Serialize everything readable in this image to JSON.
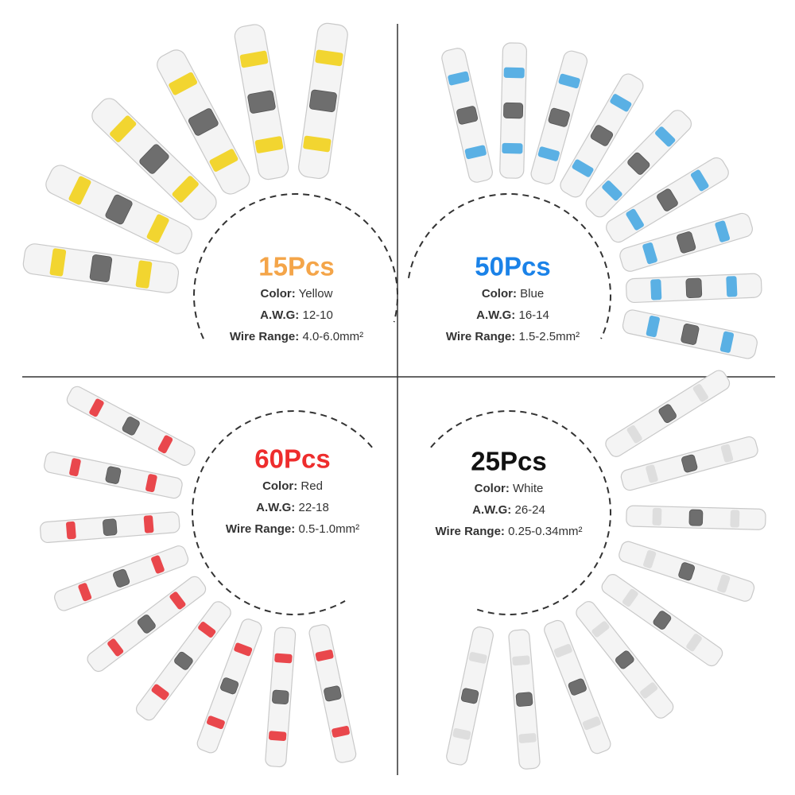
{
  "quadrants": [
    {
      "count": "15Pcs",
      "color_label": "Color:",
      "color": "Yellow",
      "awg_label": "A.W.G:",
      "awg": "12-10",
      "range_label": "Wire Range:",
      "range": "4.0-6.0mm²"
    },
    {
      "count": "50Pcs",
      "color_label": "Color:",
      "color": "Blue",
      "awg_label": "A.W.G:",
      "awg": "16-14",
      "range_label": "Wire Range:",
      "range": "1.5-2.5mm²"
    },
    {
      "count": "60Pcs",
      "color_label": "Color:",
      "color": "Red",
      "awg_label": "A.W.G:",
      "awg": "22-18",
      "range_label": "Wire Range:",
      "range": "0.5-1.0mm²"
    },
    {
      "count": "25Pcs",
      "color_label": "Color:",
      "color": "White",
      "awg_label": "A.W.G:",
      "awg": "26-24",
      "range_label": "Wire Range:",
      "range": "0.25-0.34mm²"
    }
  ]
}
